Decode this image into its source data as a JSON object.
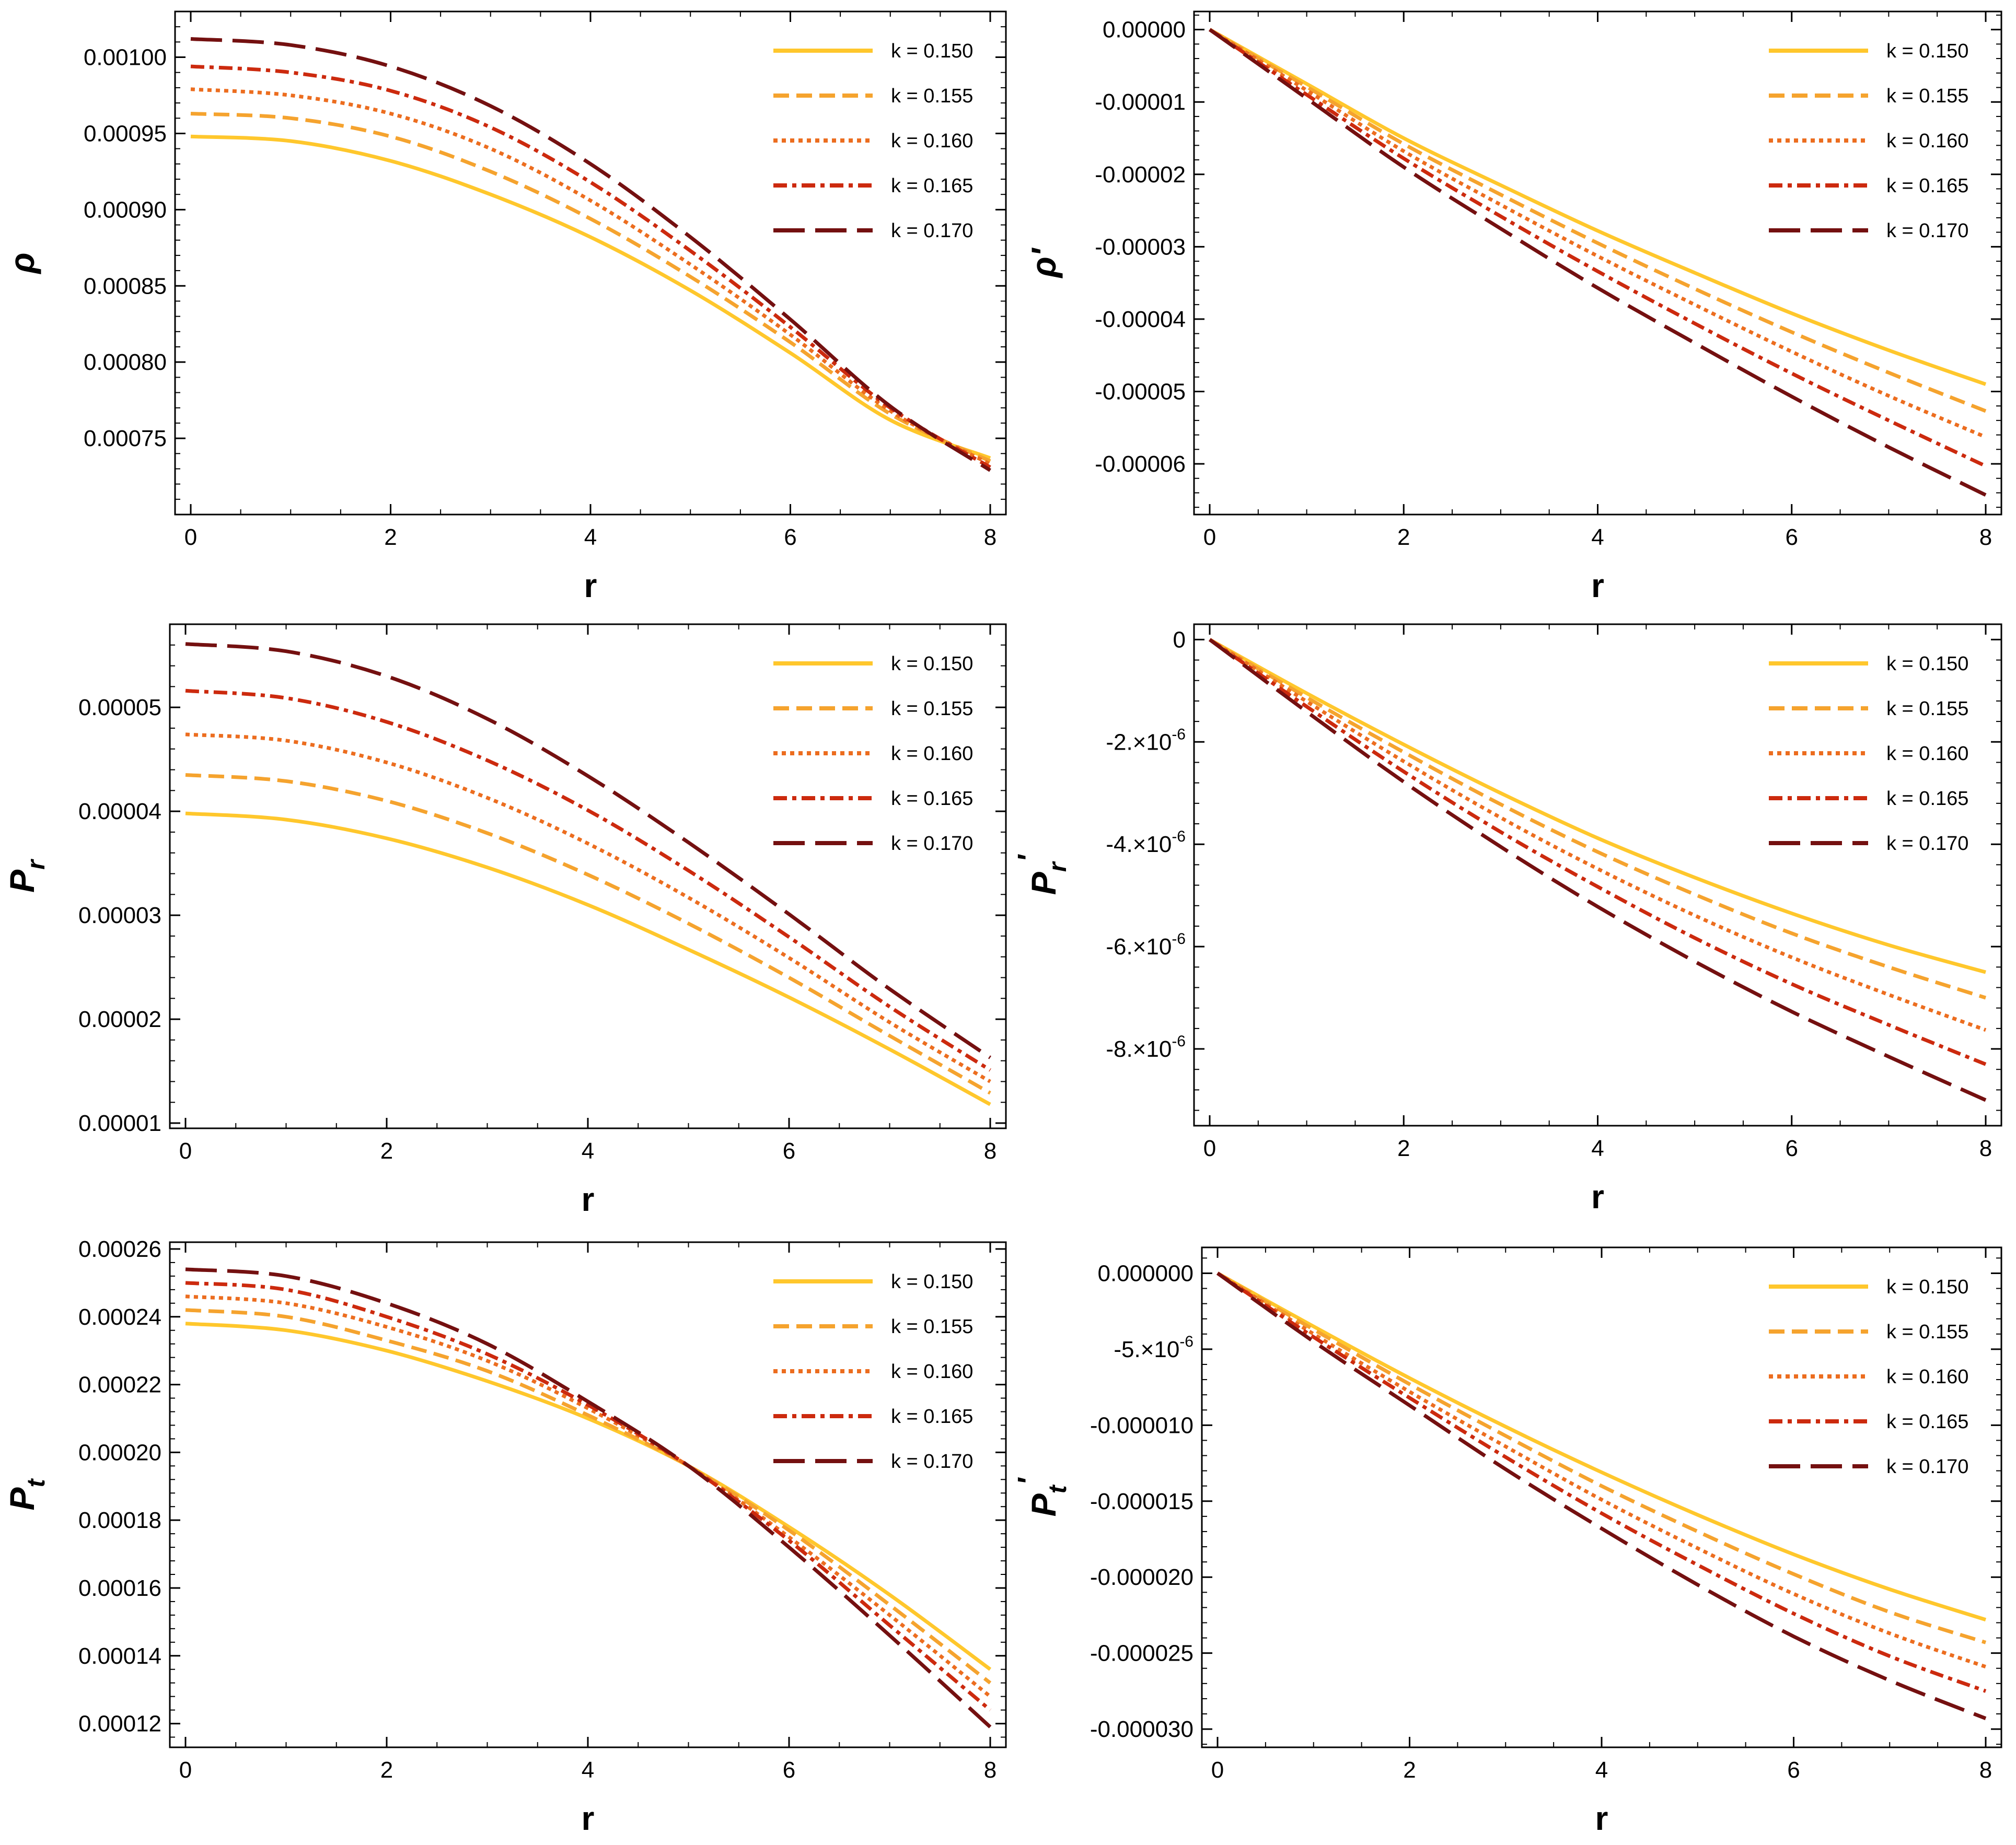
{
  "legend": {
    "entries": [
      "k = 0.150",
      "k = 0.155",
      "k = 0.160",
      "k = 0.165",
      "k = 0.170"
    ],
    "colors": [
      "#FFC72C",
      "#F5A32E",
      "#EC6D1F",
      "#CC2A0E",
      "#741010"
    ],
    "dashes": [
      "solid",
      "dashed",
      "dotted",
      "dash-dot",
      "long-dash"
    ],
    "placement": "top-right"
  },
  "chart_data": [
    {
      "type": "line",
      "xlabel": "r",
      "ylabel": "ρ",
      "xlim": [
        0,
        8
      ],
      "ylim": [
        0.0007,
        0.00103
      ],
      "xticks": [
        0,
        2,
        4,
        6,
        8
      ],
      "xtick_labels": [
        "0",
        "2",
        "4",
        "6",
        "8"
      ],
      "yticks": [
        0.00075,
        0.0008,
        0.00085,
        0.0009,
        0.00095,
        0.001
      ],
      "ytick_labels": [
        "0.00075",
        "0.00080",
        "0.00085",
        "0.00090",
        "0.00095",
        "0.00100"
      ],
      "x": [
        0,
        1,
        2,
        3,
        4,
        5,
        6,
        7,
        8
      ],
      "series": [
        {
          "name": "k = 0.150",
          "values": [
            0.000948,
            0.000945,
            0.000932,
            0.00091,
            0.000882,
            0.000847,
            0.000806,
            0.000762,
            0.000737
          ]
        },
        {
          "name": "k = 0.155",
          "values": [
            0.000963,
            0.00096,
            0.000948,
            0.000925,
            0.000894,
            0.000856,
            0.000813,
            0.000766,
            0.000735
          ]
        },
        {
          "name": "k = 0.160",
          "values": [
            0.000979,
            0.000975,
            0.000963,
            0.00094,
            0.000906,
            0.000864,
            0.000818,
            0.000768,
            0.000733
          ]
        },
        {
          "name": "k = 0.165",
          "values": [
            0.000994,
            0.00099,
            0.000978,
            0.000954,
            0.000918,
            0.000873,
            0.000823,
            0.00077,
            0.000731
          ]
        },
        {
          "name": "k = 0.170",
          "values": [
            0.001012,
            0.001008,
            0.000994,
            0.000968,
            0.00093,
            0.000882,
            0.000828,
            0.000771,
            0.000729
          ]
        }
      ]
    },
    {
      "type": "line",
      "xlabel": "r",
      "ylabel": "ρ'",
      "xlim": [
        0,
        8
      ],
      "ylim": [
        -6.7e-05,
        2.5e-06
      ],
      "xticks": [
        0,
        2,
        4,
        6,
        8
      ],
      "xtick_labels": [
        "0",
        "2",
        "4",
        "6",
        "8"
      ],
      "yticks": [
        0,
        -1e-05,
        -2e-05,
        -3e-05,
        -4e-05,
        -5e-05,
        -6e-05
      ],
      "ytick_labels": [
        "0.00000",
        "-0.00001",
        "-0.00002",
        "-0.00003",
        "-0.00004",
        "-0.00005",
        "-0.00006"
      ],
      "x": [
        0,
        1,
        2,
        3,
        4,
        5,
        6,
        7,
        8
      ],
      "series": [
        {
          "name": "k = 0.150",
          "values": [
            0,
            -7.5e-06,
            -1.5e-05,
            -2.15e-05,
            -2.78e-05,
            -3.36e-05,
            -3.92e-05,
            -4.43e-05,
            -4.9e-05
          ]
        },
        {
          "name": "k = 0.155",
          "values": [
            0,
            -7.9e-06,
            -1.58e-05,
            -2.28e-05,
            -2.95e-05,
            -3.58e-05,
            -4.18e-05,
            -4.74e-05,
            -5.27e-05
          ]
        },
        {
          "name": "k = 0.160",
          "values": [
            0,
            -8.4e-06,
            -1.68e-05,
            -2.42e-05,
            -3.13e-05,
            -3.8e-05,
            -4.45e-05,
            -5.06e-05,
            -5.63e-05
          ]
        },
        {
          "name": "k = 0.165",
          "values": [
            0,
            -9e-06,
            -1.78e-05,
            -2.58e-05,
            -3.34e-05,
            -4.06e-05,
            -4.75e-05,
            -5.4e-05,
            -6.03e-05
          ]
        },
        {
          "name": "k = 0.170",
          "values": [
            0,
            -9.5e-06,
            -1.9e-05,
            -2.75e-05,
            -3.57e-05,
            -4.33e-05,
            -5.07e-05,
            -5.77e-05,
            -6.43e-05
          ]
        }
      ]
    },
    {
      "type": "line",
      "xlabel": "r",
      "ylabel": "P",
      "ylabel_sub": "r",
      "xlim": [
        0,
        8
      ],
      "ylim": [
        9.5e-06,
        5.8e-05
      ],
      "xticks": [
        0,
        2,
        4,
        6,
        8
      ],
      "xtick_labels": [
        "0",
        "2",
        "4",
        "6",
        "8"
      ],
      "yticks": [
        1e-05,
        2e-05,
        3e-05,
        4e-05,
        5e-05
      ],
      "ytick_labels": [
        "0.00001",
        "0.00002",
        "0.00003",
        "0.00004",
        "0.00005"
      ],
      "x": [
        0,
        1,
        2,
        3,
        4,
        5,
        6,
        7,
        8
      ],
      "series": [
        {
          "name": "k = 0.150",
          "values": [
            3.98e-05,
            3.92e-05,
            3.74e-05,
            3.46e-05,
            3.1e-05,
            2.67e-05,
            2.21e-05,
            1.71e-05,
            1.18e-05
          ]
        },
        {
          "name": "k = 0.155",
          "values": [
            4.35e-05,
            4.29e-05,
            4.1e-05,
            3.79e-05,
            3.39e-05,
            2.92e-05,
            2.4e-05,
            1.84e-05,
            1.29e-05
          ]
        },
        {
          "name": "k = 0.160",
          "values": [
            4.74e-05,
            4.68e-05,
            4.47e-05,
            4.13e-05,
            3.69e-05,
            3.17e-05,
            2.59e-05,
            1.97e-05,
            1.4e-05
          ]
        },
        {
          "name": "k = 0.165",
          "values": [
            5.16e-05,
            5.09e-05,
            4.86e-05,
            4.49e-05,
            4.01e-05,
            3.43e-05,
            2.79e-05,
            2.12e-05,
            1.51e-05
          ]
        },
        {
          "name": "k = 0.170",
          "values": [
            5.61e-05,
            5.54e-05,
            5.3e-05,
            4.89e-05,
            4.34e-05,
            3.7e-05,
            3.01e-05,
            2.29e-05,
            1.63e-05
          ]
        }
      ]
    },
    {
      "type": "line",
      "xlabel": "r",
      "ylabel": "P",
      "ylabel_sub": "r",
      "ylabel_prime": "'",
      "xlim": [
        0,
        8
      ],
      "ylim": [
        -9.5e-06,
        3e-07
      ],
      "xticks": [
        0,
        2,
        4,
        6,
        8
      ],
      "xtick_labels": [
        "0",
        "2",
        "4",
        "6",
        "8"
      ],
      "yticks": [
        0,
        -2e-06,
        -4e-06,
        -6e-06,
        -8e-06
      ],
      "ytick_labels": [
        {
          "text": "0",
          "exp": ""
        },
        {
          "text": "-2.×10",
          "exp": "-6"
        },
        {
          "text": "-4.×10",
          "exp": "-6"
        },
        {
          "text": "-6.×10",
          "exp": "-6"
        },
        {
          "text": "-8.×10",
          "exp": "-6"
        }
      ],
      "x": [
        0,
        1,
        2,
        3,
        4,
        5,
        6,
        7,
        8
      ],
      "series": [
        {
          "name": "k = 0.150",
          "values": [
            0,
            -1.05e-06,
            -2.05e-06,
            -3e-06,
            -3.88e-06,
            -4.65e-06,
            -5.35e-06,
            -5.97e-06,
            -6.5e-06
          ]
        },
        {
          "name": "k = 0.155",
          "values": [
            0,
            -1.13e-06,
            -2.2e-06,
            -3.22e-06,
            -4.15e-06,
            -4.98e-06,
            -5.74e-06,
            -6.4e-06,
            -7e-06
          ]
        },
        {
          "name": "k = 0.160",
          "values": [
            0,
            -1.21e-06,
            -2.38e-06,
            -3.48e-06,
            -4.48e-06,
            -5.39e-06,
            -6.21e-06,
            -6.94e-06,
            -7.63e-06
          ]
        },
        {
          "name": "k = 0.165",
          "values": [
            0,
            -1.31e-06,
            -2.58e-06,
            -3.76e-06,
            -4.83e-06,
            -5.83e-06,
            -6.73e-06,
            -7.53e-06,
            -8.3e-06
          ]
        },
        {
          "name": "k = 0.170",
          "values": [
            0,
            -1.41e-06,
            -2.78e-06,
            -4.05e-06,
            -5.22e-06,
            -6.29e-06,
            -7.27e-06,
            -8.15e-06,
            -9e-06
          ]
        }
      ]
    },
    {
      "type": "line",
      "xlabel": "r",
      "ylabel": "P",
      "ylabel_sub": "t",
      "xlim": [
        0,
        8
      ],
      "ylim": [
        0.000113,
        0.000262
      ],
      "xticks": [
        0,
        2,
        4,
        6,
        8
      ],
      "xtick_labels": [
        "0",
        "2",
        "4",
        "6",
        "8"
      ],
      "yticks": [
        0.00012,
        0.00014,
        0.00016,
        0.00018,
        0.0002,
        0.00022,
        0.00024,
        0.00026
      ],
      "ytick_labels": [
        "0.00012",
        "0.00014",
        "0.00016",
        "0.00018",
        "0.00020",
        "0.00022",
        "0.00024",
        "0.00026"
      ],
      "x": [
        0,
        1,
        2,
        3,
        4,
        5,
        6,
        7,
        8
      ],
      "series": [
        {
          "name": "k = 0.150",
          "values": [
            0.000238,
            0.000236,
            0.00023,
            0.000221,
            0.00021,
            0.000196,
            0.000178,
            0.000158,
            0.000136
          ]
        },
        {
          "name": "k = 0.155",
          "values": [
            0.000242,
            0.00024,
            0.000233,
            0.000224,
            0.000211,
            0.000196,
            0.000177,
            0.000155,
            0.000132
          ]
        },
        {
          "name": "k = 0.160",
          "values": [
            0.000246,
            0.000244,
            0.000237,
            0.000227,
            0.000213,
            0.000196,
            0.000175,
            0.000152,
            0.000128
          ]
        },
        {
          "name": "k = 0.165",
          "values": [
            0.00025,
            0.000248,
            0.00024,
            0.000229,
            0.000214,
            0.000196,
            0.000174,
            0.000149,
            0.000124
          ]
        },
        {
          "name": "k = 0.170",
          "values": [
            0.000254,
            0.000252,
            0.000244,
            0.000232,
            0.000215,
            0.000196,
            0.000172,
            0.000146,
            0.000119
          ]
        }
      ]
    },
    {
      "type": "line",
      "xlabel": "r",
      "ylabel": "P",
      "ylabel_sub": "t",
      "ylabel_prime": "'",
      "xlim": [
        0,
        8
      ],
      "ylim": [
        -3.12e-05,
        1.7e-06
      ],
      "xticks": [
        0,
        2,
        4,
        6,
        8
      ],
      "xtick_labels": [
        "0",
        "2",
        "4",
        "6",
        "8"
      ],
      "yticks": [
        0,
        -5e-06,
        -1e-05,
        -1.5e-05,
        -2e-05,
        -2.5e-05,
        -3e-05
      ],
      "ytick_labels": [
        {
          "text": "0.000000",
          "exp": ""
        },
        {
          "text": "-5.×10",
          "exp": "-6"
        },
        {
          "text": "-0.000010",
          "exp": ""
        },
        {
          "text": "-0.000015",
          "exp": ""
        },
        {
          "text": "-0.000020",
          "exp": ""
        },
        {
          "text": "-0.000025",
          "exp": ""
        },
        {
          "text": "-0.000030",
          "exp": ""
        }
      ],
      "x": [
        0,
        1,
        2,
        3,
        4,
        5,
        6,
        7,
        8
      ],
      "series": [
        {
          "name": "k = 0.150",
          "values": [
            0,
            -3.5e-06,
            -6.9e-06,
            -1.01e-05,
            -1.31e-05,
            -1.59e-05,
            -1.85e-05,
            -2.08e-05,
            -2.28e-05
          ]
        },
        {
          "name": "k = 0.155",
          "values": [
            0,
            -3.7e-06,
            -7.3e-06,
            -1.07e-05,
            -1.4e-05,
            -1.7e-05,
            -1.98e-05,
            -2.23e-05,
            -2.43e-05
          ]
        },
        {
          "name": "k = 0.160",
          "values": [
            0,
            -4e-06,
            -7.8e-06,
            -1.14e-05,
            -1.49e-05,
            -1.81e-05,
            -2.11e-05,
            -2.37e-05,
            -2.59e-05
          ]
        },
        {
          "name": "k = 0.165",
          "values": [
            0,
            -4.2e-06,
            -8.2e-06,
            -1.21e-05,
            -1.58e-05,
            -1.92e-05,
            -2.24e-05,
            -2.52e-05,
            -2.75e-05
          ]
        },
        {
          "name": "k = 0.170",
          "values": [
            0,
            -4.5e-06,
            -8.7e-06,
            -1.29e-05,
            -1.68e-05,
            -2.05e-05,
            -2.39e-05,
            -2.68e-05,
            -2.93e-05
          ]
        }
      ]
    }
  ]
}
